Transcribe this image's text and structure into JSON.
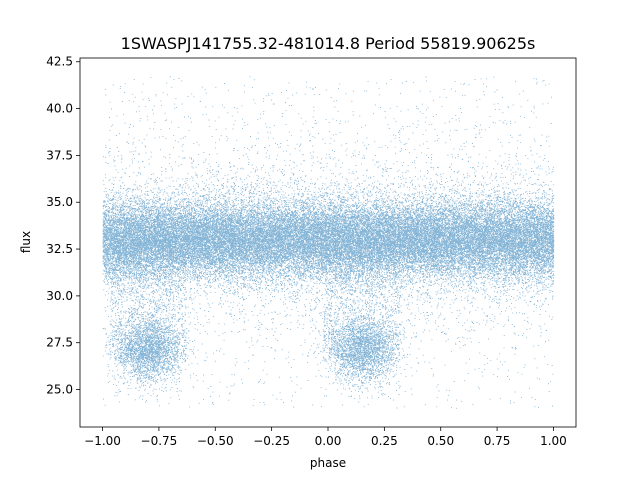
{
  "chart_data": {
    "type": "scatter",
    "title": "1SWASPJ141755.32-481014.8 Period 55819.90625s",
    "xlabel": "phase",
    "ylabel": "flux",
    "xlim": [
      -1.1,
      1.1
    ],
    "ylim": [
      23.0,
      42.7
    ],
    "xticks": [
      -1.0,
      -0.75,
      -0.5,
      -0.25,
      0.0,
      0.25,
      0.5,
      0.75,
      1.0
    ],
    "xtick_labels": [
      "−1.00",
      "−0.75",
      "−0.50",
      "−0.25",
      "0.00",
      "0.25",
      "0.50",
      "0.75",
      "1.00"
    ],
    "yticks": [
      25.0,
      27.5,
      30.0,
      32.5,
      35.0,
      37.5,
      40.0,
      42.5
    ],
    "ytick_labels": [
      "25.0",
      "27.5",
      "30.0",
      "32.5",
      "35.0",
      "37.5",
      "40.0",
      "42.5"
    ],
    "grid": false,
    "legend": false,
    "color": "#1f77b4",
    "series": [
      {
        "phase_range": [
          -1.0,
          1.0
        ],
        "baseline_flux": 33.0,
        "core_flux_range": [
          30.5,
          35.5
        ],
        "outlier_flux_range": [
          24.0,
          41.7
        ],
        "eclipses": [
          {
            "phase_center": -0.8,
            "min_flux": 26.5
          },
          {
            "phase_center": 0.15,
            "min_flux": 26.5
          }
        ]
      }
    ]
  }
}
